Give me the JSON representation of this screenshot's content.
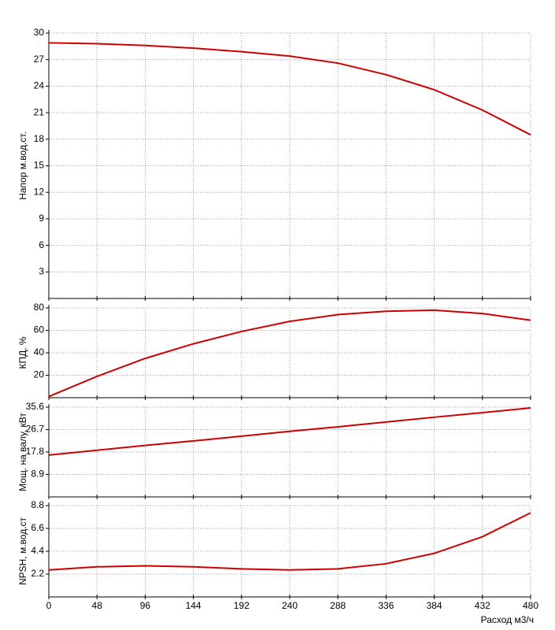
{
  "chart_data": [
    {
      "type": "line",
      "ylabel": "Напор м.вод.ст.",
      "x": [
        0,
        48,
        96,
        144,
        192,
        240,
        288,
        336,
        384,
        432,
        480
      ],
      "series": [
        {
          "color": "#cc0000",
          "values": [
            28.9,
            28.8,
            28.6,
            28.3,
            27.9,
            27.4,
            26.6,
            25.3,
            23.6,
            21.3,
            18.5
          ]
        }
      ],
      "xlim": [
        0,
        480
      ],
      "xticks": [
        0,
        48,
        96,
        144,
        192,
        240,
        288,
        336,
        384,
        432,
        480
      ],
      "ylim": [
        0,
        30
      ],
      "yticks": [
        3,
        6,
        9,
        12,
        15,
        18,
        21,
        24,
        27,
        30
      ],
      "grid": true
    },
    {
      "type": "line",
      "ylabel": "КПД, %",
      "x": [
        0,
        48,
        96,
        144,
        192,
        240,
        288,
        336,
        384,
        432,
        480
      ],
      "series": [
        {
          "color": "#cc0000",
          "values": [
            1,
            19,
            35,
            48,
            59,
            68,
            74,
            77,
            78,
            75,
            69
          ]
        }
      ],
      "xlim": [
        0,
        480
      ],
      "xticks": [
        0,
        48,
        96,
        144,
        192,
        240,
        288,
        336,
        384,
        432,
        480
      ],
      "ylim": [
        0,
        80
      ],
      "yticks": [
        20,
        40,
        60,
        80
      ],
      "grid": true
    },
    {
      "type": "line",
      "ylabel": "Мощ. на валу, кВт",
      "x": [
        0,
        48,
        96,
        144,
        192,
        240,
        288,
        336,
        384,
        432,
        480
      ],
      "series": [
        {
          "color": "#cc0000",
          "values": [
            16.6,
            18.5,
            20.4,
            22.2,
            24.1,
            26.0,
            27.8,
            29.7,
            31.6,
            33.4,
            35.3
          ]
        }
      ],
      "xlim": [
        0,
        480
      ],
      "xticks": [
        0,
        48,
        96,
        144,
        192,
        240,
        288,
        336,
        384,
        432,
        480
      ],
      "ylim": [
        0,
        35.6
      ],
      "yticks": [
        8.9,
        17.8,
        26.7,
        35.6
      ],
      "grid": true
    },
    {
      "type": "line",
      "ylabel": "NPSH, м.вод.ст",
      "xlabel": "Расход м3/ч",
      "x": [
        0,
        48,
        96,
        144,
        192,
        240,
        288,
        336,
        384,
        432,
        480
      ],
      "series": [
        {
          "color": "#cc0000",
          "values": [
            2.6,
            2.9,
            3.0,
            2.9,
            2.7,
            2.6,
            2.7,
            3.2,
            4.2,
            5.8,
            8.1
          ]
        }
      ],
      "xlim": [
        0,
        480
      ],
      "xticks": [
        0,
        48,
        96,
        144,
        192,
        240,
        288,
        336,
        384,
        432,
        480
      ],
      "ylim": [
        0,
        8.8
      ],
      "yticks": [
        2.2,
        4.4,
        6.6,
        8.8
      ],
      "grid": true
    }
  ]
}
